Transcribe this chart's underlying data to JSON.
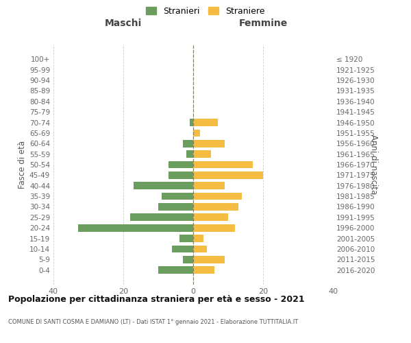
{
  "age_groups": [
    "100+",
    "95-99",
    "90-94",
    "85-89",
    "80-84",
    "75-79",
    "70-74",
    "65-69",
    "60-64",
    "55-59",
    "50-54",
    "45-49",
    "40-44",
    "35-39",
    "30-34",
    "25-29",
    "20-24",
    "15-19",
    "10-14",
    "5-9",
    "0-4"
  ],
  "birth_years": [
    "≤ 1920",
    "1921-1925",
    "1926-1930",
    "1931-1935",
    "1936-1940",
    "1941-1945",
    "1946-1950",
    "1951-1955",
    "1956-1960",
    "1961-1965",
    "1966-1970",
    "1971-1975",
    "1976-1980",
    "1981-1985",
    "1986-1990",
    "1991-1995",
    "1996-2000",
    "2001-2005",
    "2006-2010",
    "2011-2015",
    "2016-2020"
  ],
  "maschi": [
    0,
    0,
    0,
    0,
    0,
    0,
    1,
    0,
    3,
    2,
    7,
    7,
    17,
    9,
    10,
    18,
    33,
    4,
    6,
    3,
    10
  ],
  "femmine": [
    0,
    0,
    0,
    0,
    0,
    0,
    7,
    2,
    9,
    5,
    17,
    20,
    9,
    14,
    13,
    10,
    12,
    3,
    4,
    9,
    6
  ],
  "color_maschi": "#6b9e5e",
  "color_femmine": "#f5bc42",
  "title": "Popolazione per cittadinanza straniera per età e sesso - 2021",
  "subtitle": "COMUNE DI SANTI COSMA E DAMIANO (LT) - Dati ISTAT 1° gennaio 2021 - Elaborazione TUTTITALIA.IT",
  "xlabel_left": "Maschi",
  "xlabel_right": "Femmine",
  "ylabel_left": "Fasce di età",
  "ylabel_right": "Anni di nascita",
  "legend_maschi": "Stranieri",
  "legend_femmine": "Straniere",
  "xlim": 40,
  "bg_color": "#ffffff",
  "grid_color": "#cccccc",
  "center_line_color": "#808060"
}
